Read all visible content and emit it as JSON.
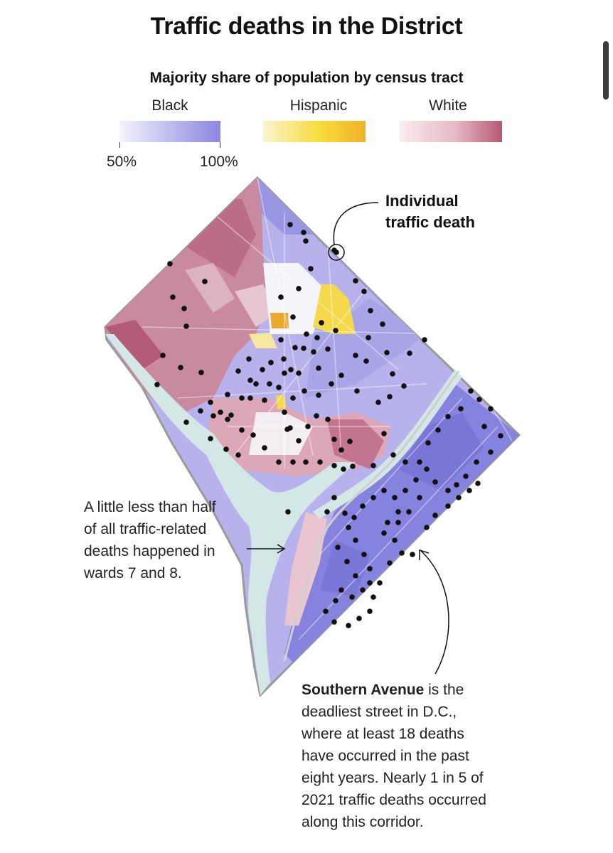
{
  "title": "Traffic deaths in the District",
  "legend": {
    "title": "Majority share of population by census tract",
    "categories": [
      {
        "label": "Black",
        "color_low": "#f4f3fd",
        "color_high": "#8a86e0"
      },
      {
        "label": "Hispanic",
        "color_low": "#fbf3cf",
        "color_high": "#f0b12a"
      },
      {
        "label": "White",
        "color_low": "#f8edef",
        "color_high": "#b65874"
      }
    ],
    "scale_min_label": "50%",
    "scale_max_label": "100%"
  },
  "annotations": {
    "individual_line1": "Individual",
    "individual_line2": "traffic death",
    "wards_lines": [
      "A little less than half",
      "of all traffic-related",
      "deaths happened in",
      "wards 7 and 8."
    ],
    "southern_bold": "Southern Avenue",
    "southern_rest_first": " is the",
    "southern_lines": [
      "deadliest street in D.C.,",
      "where at least 18 deaths",
      "have occurred in the past",
      "eight years. Nearly 1 in 5 of",
      "2021 traffic deaths occurred",
      "along this corridor."
    ]
  },
  "map": {
    "colors": {
      "black_tract": "#9b98e4",
      "black_tract_strong": "#7f7bdc",
      "white_tract": "#c98a9f",
      "white_tract_strong": "#b35a79",
      "hispanic_tract": "#f5d94a",
      "hispanic_tract_strong": "#e8a92c",
      "river": "#d3e7e6",
      "death_dot": "#111111",
      "boundary": "#9a9a9a"
    }
  }
}
